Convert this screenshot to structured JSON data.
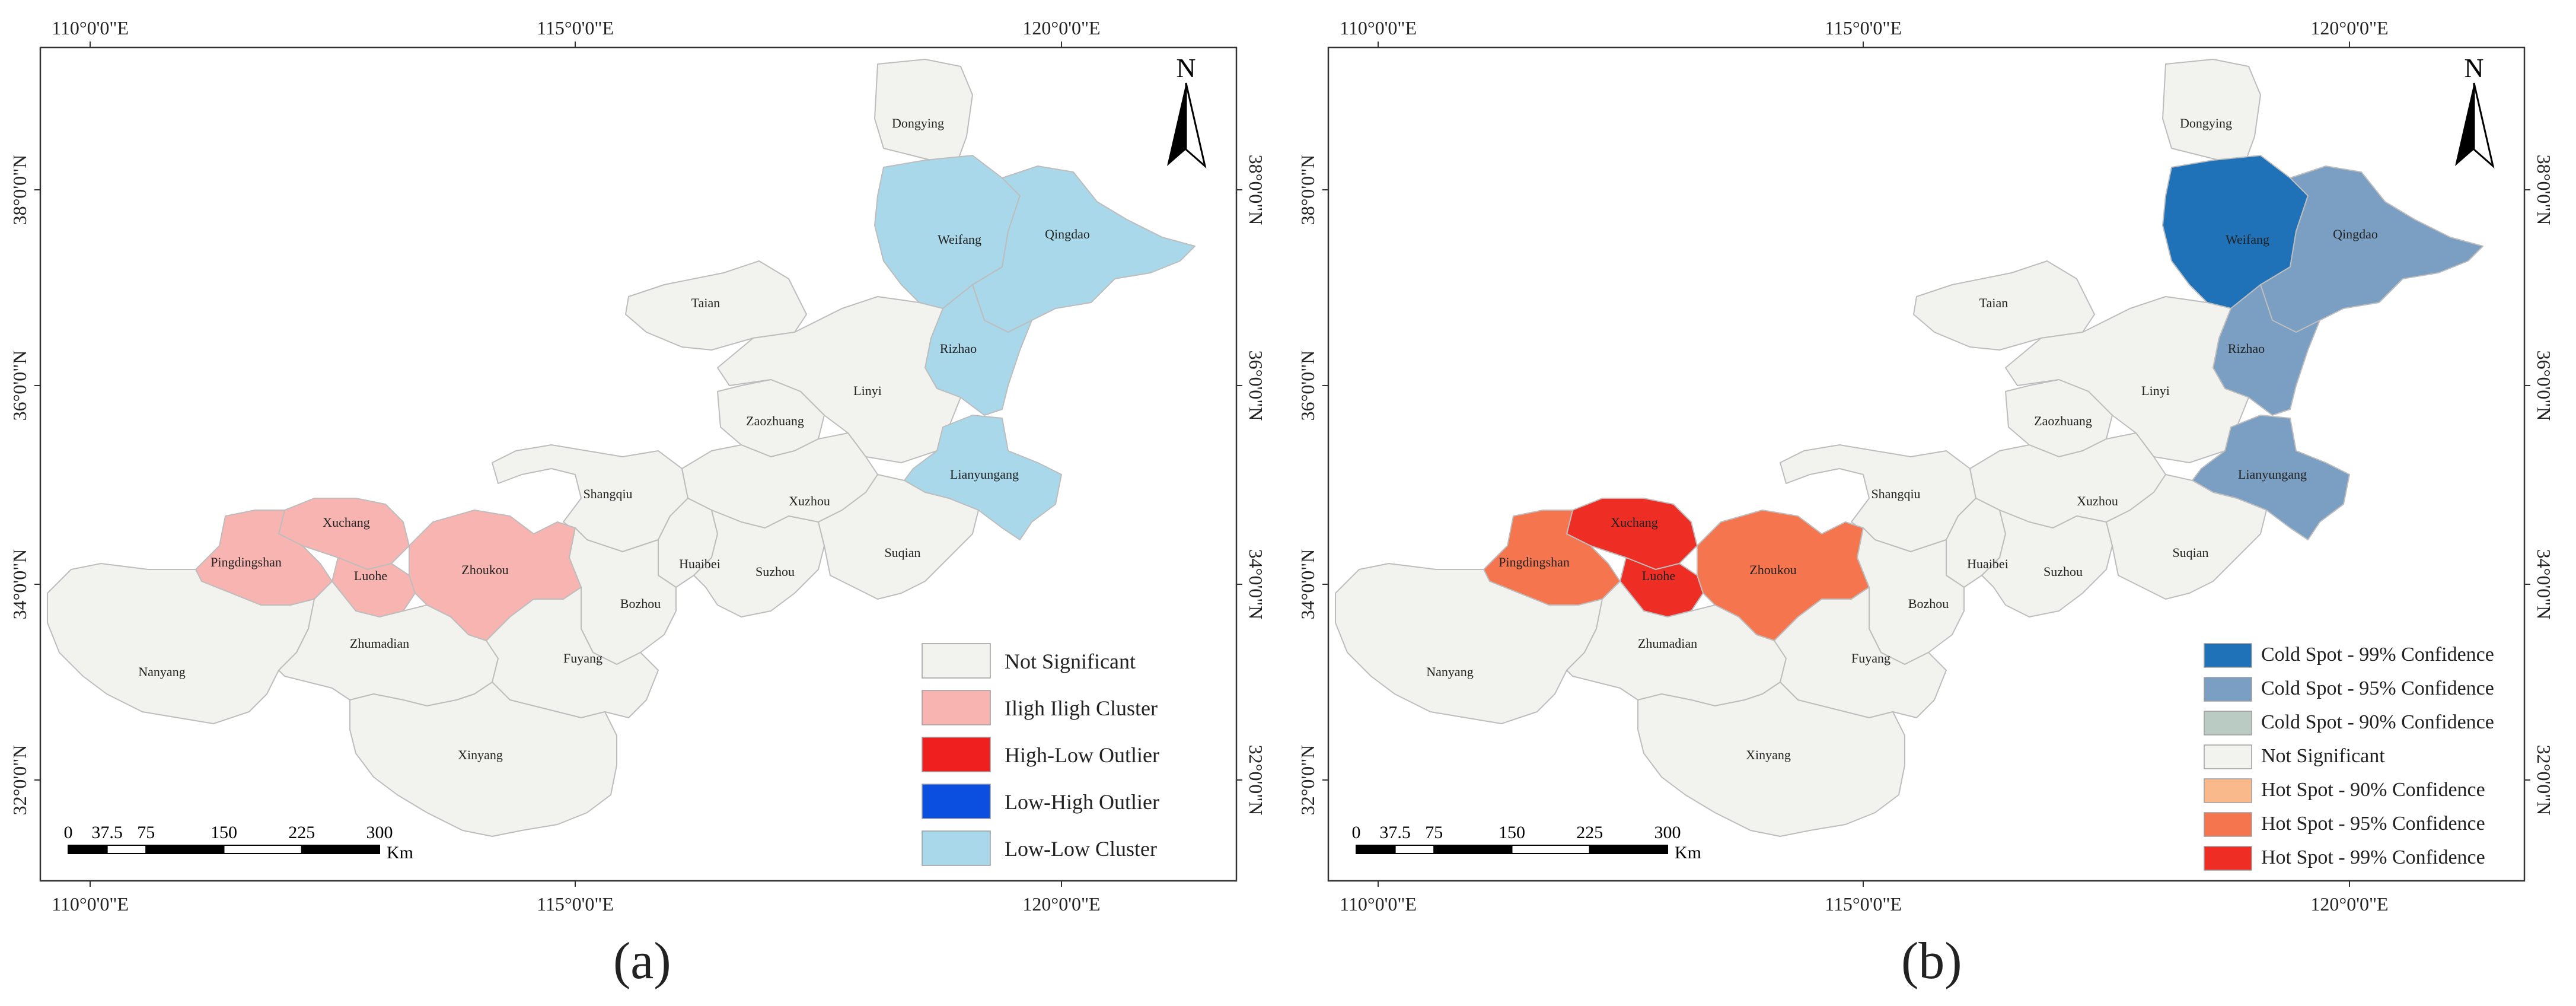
{
  "panels": [
    {
      "id": "a",
      "caption": "(a)",
      "lon_top": [
        "110°0'0\"E",
        "115°0'0\"E",
        "120°0'0\"E"
      ],
      "lon_bottom": [
        "110°0'0\"E",
        "115°0'0\"E",
        "120°0'0\"E"
      ],
      "lat_left": [
        "38°0'0\"N",
        "36°0'0\"N",
        "34°0'0\"N",
        "32°0'0\"N"
      ],
      "lat_right": [
        "38°0'0\"N",
        "36°0'0\"N",
        "34°0'0\"N",
        "32°0'0\"N"
      ],
      "north": "N",
      "scale": {
        "ticks": [
          "0",
          "37.5",
          "75",
          "150",
          "225",
          "300"
        ],
        "unit": "Km"
      },
      "legend": [
        {
          "label": "Not Significant",
          "color": "#f2f2ee"
        },
        {
          "label": "Iligh Iligh Cluster",
          "color": "#f8b4b0"
        },
        {
          "label": "High-Low Outlier",
          "color": "#f01f1f"
        },
        {
          "label": "Low-High Outlier",
          "color": "#0a4fe0"
        },
        {
          "label": "Low-Low Cluster",
          "color": "#a8d8ea"
        }
      ],
      "cities": [
        {
          "name": "Dongying",
          "class": 0
        },
        {
          "name": "Weifang",
          "class": 4
        },
        {
          "name": "Qingdao",
          "class": 4
        },
        {
          "name": "Taian",
          "class": 0
        },
        {
          "name": "Rizhao",
          "class": 4
        },
        {
          "name": "Linyi",
          "class": 0
        },
        {
          "name": "Zaozhuang",
          "class": 0
        },
        {
          "name": "Lianyungang",
          "class": 4
        },
        {
          "name": "Shangqiu",
          "class": 0
        },
        {
          "name": "Xuzhou",
          "class": 0
        },
        {
          "name": "Xuchang",
          "class": 1
        },
        {
          "name": "Pingdingshan",
          "class": 1
        },
        {
          "name": "Luohe",
          "class": 1
        },
        {
          "name": "Zhoukou",
          "class": 1
        },
        {
          "name": "Huaibei",
          "class": 0
        },
        {
          "name": "Suzhou",
          "class": 0
        },
        {
          "name": "Suqian",
          "class": 0
        },
        {
          "name": "Bozhou",
          "class": 0
        },
        {
          "name": "Nanyang",
          "class": 0
        },
        {
          "name": "Zhumadian",
          "class": 0
        },
        {
          "name": "Fuyang",
          "class": 0
        },
        {
          "name": "Xinyang",
          "class": 0
        }
      ]
    },
    {
      "id": "b",
      "caption": "(b)",
      "lon_top": [
        "110°0'0\"E",
        "115°0'0\"E",
        "120°0'0\"E"
      ],
      "lon_bottom": [
        "110°0'0\"E",
        "115°0'0\"E",
        "120°0'0\"E"
      ],
      "lat_left": [
        "38°0'0\"N",
        "36°0'0\"N",
        "34°0'0\"N",
        "32°0'0\"N"
      ],
      "lat_right": [
        "38°0'0\"N",
        "36°0'0\"N",
        "34°0'0\"N",
        "32°0'0\"N"
      ],
      "north": "N",
      "scale": {
        "ticks": [
          "0",
          "37.5",
          "75",
          "150",
          "225",
          "300"
        ],
        "unit": "Km"
      },
      "legend": [
        {
          "label": "Cold Spot - 99% Confidence",
          "color": "#1f72b8"
        },
        {
          "label": "Cold Spot - 95% Confidence",
          "color": "#7a9fc2"
        },
        {
          "label": "Cold Spot - 90% Confidence",
          "color": "#b9cbc2"
        },
        {
          "label": "Not Significant",
          "color": "#f2f2ee"
        },
        {
          "label": "Hot Spot - 90% Confidence",
          "color": "#f9b98a"
        },
        {
          "label": "Hot Spot - 95% Confidence",
          "color": "#f5764e"
        },
        {
          "label": "Hot Spot - 99% Confidence",
          "color": "#ee2d24"
        }
      ],
      "cities": [
        {
          "name": "Dongying",
          "class": 3
        },
        {
          "name": "Weifang",
          "class": 0
        },
        {
          "name": "Qingdao",
          "class": 1
        },
        {
          "name": "Taian",
          "class": 3
        },
        {
          "name": "Rizhao",
          "class": 1
        },
        {
          "name": "Linyi",
          "class": 3
        },
        {
          "name": "Zaozhuang",
          "class": 3
        },
        {
          "name": "Lianyungang",
          "class": 1
        },
        {
          "name": "Shangqiu",
          "class": 3
        },
        {
          "name": "Xuzhou",
          "class": 3
        },
        {
          "name": "Xuchang",
          "class": 6
        },
        {
          "name": "Pingdingshan",
          "class": 5
        },
        {
          "name": "Luohe",
          "class": 6
        },
        {
          "name": "Zhoukou",
          "class": 5
        },
        {
          "name": "Huaibei",
          "class": 3
        },
        {
          "name": "Suzhou",
          "class": 3
        },
        {
          "name": "Suqian",
          "class": 3
        },
        {
          "name": "Bozhou",
          "class": 3
        },
        {
          "name": "Nanyang",
          "class": 3
        },
        {
          "name": "Zhumadian",
          "class": 3
        },
        {
          "name": "Fuyang",
          "class": 3
        },
        {
          "name": "Xinyang",
          "class": 3
        }
      ]
    }
  ]
}
